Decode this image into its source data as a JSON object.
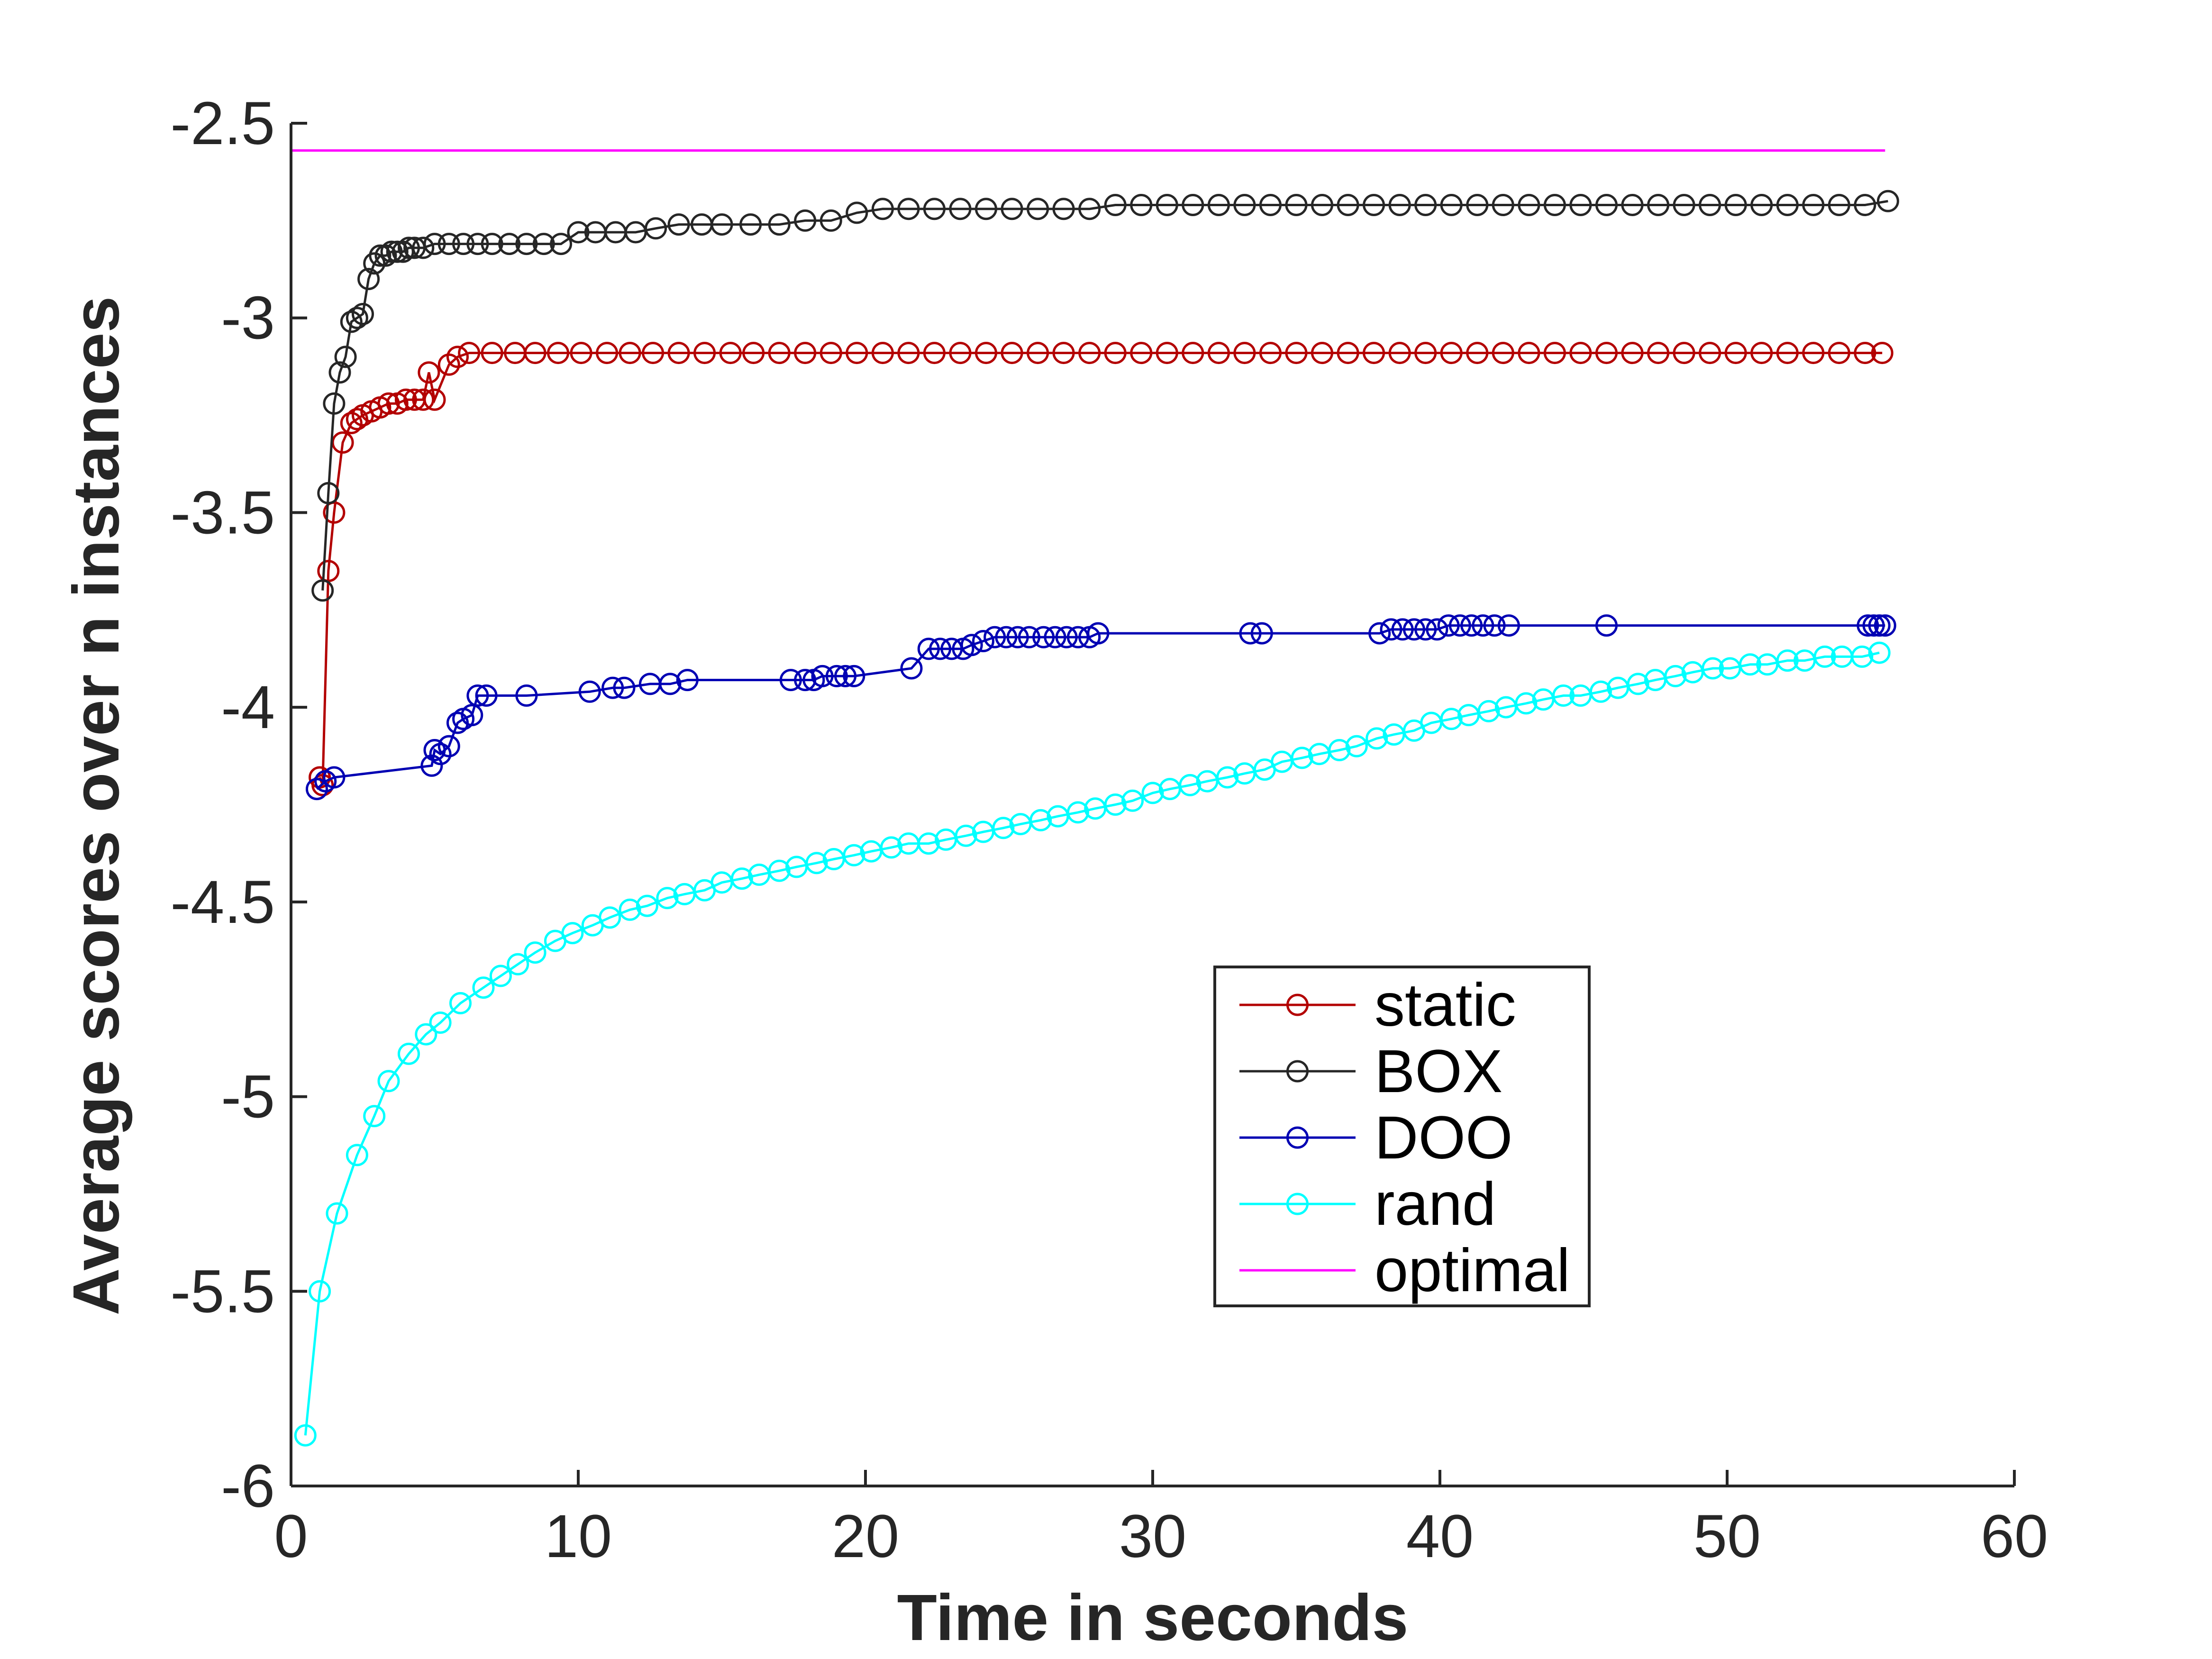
{
  "chart_data": {
    "type": "line",
    "title": "",
    "xlabel": "Time in seconds",
    "ylabel": "Average scores over n instances",
    "xlim": [
      0,
      60
    ],
    "ylim": [
      -6,
      -2.5
    ],
    "xticks": [
      0,
      10,
      20,
      30,
      40,
      50,
      60
    ],
    "yticks": [
      -2.5,
      -3,
      -3.5,
      -4,
      -4.5,
      -5,
      -5.5,
      -6
    ],
    "xtick_labels": [
      "0",
      "10",
      "20",
      "30",
      "40",
      "50",
      "60"
    ],
    "ytick_labels": [
      "-2.5",
      "-3",
      "-3.5",
      "-4",
      "-4.5",
      "-5",
      "-5.5",
      "-6"
    ],
    "grid": false,
    "legend_position": "lower-right",
    "series": [
      {
        "name": "static",
        "color": "#b30000",
        "marker": "circle",
        "x": [
          1.0,
          1.1,
          1.3,
          1.5,
          1.8,
          2.1,
          2.3,
          2.5,
          2.8,
          3.1,
          3.4,
          3.7,
          4.0,
          4.3,
          4.6,
          4.8,
          5.0,
          5.5,
          5.8,
          6.2,
          7.0,
          7.8,
          8.5,
          9.3,
          10.1,
          11.0,
          11.8,
          12.6,
          13.5,
          14.4,
          15.3,
          16.1,
          17.0,
          17.9,
          18.8,
          19.7,
          20.6,
          21.5,
          22.4,
          23.3,
          24.2,
          25.1,
          26.0,
          26.9,
          27.8,
          28.7,
          29.6,
          30.5,
          31.4,
          32.3,
          33.2,
          34.1,
          35.0,
          35.9,
          36.8,
          37.7,
          38.6,
          39.5,
          40.4,
          41.3,
          42.2,
          43.1,
          44.0,
          44.9,
          45.8,
          46.7,
          47.6,
          48.5,
          49.4,
          50.3,
          51.2,
          52.1,
          53.0,
          53.9,
          54.8,
          55.4
        ],
        "y": [
          -4.18,
          -4.2,
          -3.65,
          -3.5,
          -3.32,
          -3.27,
          -3.26,
          -3.25,
          -3.24,
          -3.23,
          -3.22,
          -3.22,
          -3.21,
          -3.21,
          -3.21,
          -3.14,
          -3.21,
          -3.12,
          -3.1,
          -3.09,
          -3.09,
          -3.09,
          -3.09,
          -3.09,
          -3.09,
          -3.09,
          -3.09,
          -3.09,
          -3.09,
          -3.09,
          -3.09,
          -3.09,
          -3.09,
          -3.09,
          -3.09,
          -3.09,
          -3.09,
          -3.09,
          -3.09,
          -3.09,
          -3.09,
          -3.09,
          -3.09,
          -3.09,
          -3.09,
          -3.09,
          -3.09,
          -3.09,
          -3.09,
          -3.09,
          -3.09,
          -3.09,
          -3.09,
          -3.09,
          -3.09,
          -3.09,
          -3.09,
          -3.09,
          -3.09,
          -3.09,
          -3.09,
          -3.09,
          -3.09,
          -3.09,
          -3.09,
          -3.09,
          -3.09,
          -3.09,
          -3.09,
          -3.09,
          -3.09,
          -3.09,
          -3.09,
          -3.09,
          -3.09,
          -3.09
        ]
      },
      {
        "name": "BOX",
        "color": "#262626",
        "marker": "circle",
        "x": [
          1.1,
          1.3,
          1.5,
          1.7,
          1.9,
          2.1,
          2.3,
          2.5,
          2.7,
          2.9,
          3.1,
          3.3,
          3.5,
          3.7,
          3.9,
          4.1,
          4.3,
          4.6,
          5.0,
          5.5,
          6.0,
          6.5,
          7.0,
          7.6,
          8.2,
          8.8,
          9.4,
          10.0,
          10.6,
          11.3,
          12.0,
          12.7,
          13.5,
          14.3,
          15.0,
          16.0,
          17.0,
          17.9,
          18.8,
          19.7,
          20.6,
          21.5,
          22.4,
          23.3,
          24.2,
          25.1,
          26.0,
          26.9,
          27.8,
          28.7,
          29.6,
          30.5,
          31.4,
          32.3,
          33.2,
          34.1,
          35.0,
          35.9,
          36.8,
          37.7,
          38.6,
          39.5,
          40.4,
          41.3,
          42.2,
          43.1,
          44.0,
          44.9,
          45.8,
          46.7,
          47.6,
          48.5,
          49.4,
          50.3,
          51.2,
          52.1,
          53.0,
          53.9,
          54.8,
          55.6
        ],
        "y": [
          -3.7,
          -3.45,
          -3.22,
          -3.14,
          -3.1,
          -3.01,
          -3.0,
          -2.99,
          -2.9,
          -2.86,
          -2.84,
          -2.84,
          -2.83,
          -2.83,
          -2.83,
          -2.82,
          -2.82,
          -2.82,
          -2.81,
          -2.81,
          -2.81,
          -2.81,
          -2.81,
          -2.81,
          -2.81,
          -2.81,
          -2.81,
          -2.78,
          -2.78,
          -2.78,
          -2.78,
          -2.77,
          -2.76,
          -2.76,
          -2.76,
          -2.76,
          -2.76,
          -2.75,
          -2.75,
          -2.73,
          -2.72,
          -2.72,
          -2.72,
          -2.72,
          -2.72,
          -2.72,
          -2.72,
          -2.72,
          -2.72,
          -2.71,
          -2.71,
          -2.71,
          -2.71,
          -2.71,
          -2.71,
          -2.71,
          -2.71,
          -2.71,
          -2.71,
          -2.71,
          -2.71,
          -2.71,
          -2.71,
          -2.71,
          -2.71,
          -2.71,
          -2.71,
          -2.71,
          -2.71,
          -2.71,
          -2.71,
          -2.71,
          -2.71,
          -2.71,
          -2.71,
          -2.71,
          -2.71,
          -2.71,
          -2.71,
          -2.7
        ]
      },
      {
        "name": "DOO",
        "color": "#0000b3",
        "marker": "circle",
        "x": [
          0.9,
          1.2,
          1.5,
          4.9,
          5.0,
          5.2,
          5.5,
          5.8,
          6.0,
          6.3,
          6.5,
          6.8,
          8.2,
          10.4,
          11.2,
          11.6,
          12.5,
          13.2,
          13.8,
          17.4,
          17.9,
          18.2,
          18.5,
          19.0,
          19.3,
          19.6,
          21.6,
          22.2,
          22.6,
          23.0,
          23.4,
          23.7,
          24.1,
          24.5,
          24.9,
          25.3,
          25.7,
          26.2,
          26.6,
          27.0,
          27.4,
          27.8,
          28.1,
          33.4,
          33.8,
          37.9,
          38.3,
          38.7,
          39.1,
          39.5,
          39.9,
          40.3,
          40.7,
          41.1,
          41.5,
          41.9,
          42.4,
          45.8,
          54.9,
          55.1,
          55.3,
          55.5
        ],
        "y": [
          -4.21,
          -4.19,
          -4.18,
          -4.15,
          -4.11,
          -4.12,
          -4.1,
          -4.04,
          -4.03,
          -4.02,
          -3.97,
          -3.97,
          -3.97,
          -3.96,
          -3.95,
          -3.95,
          -3.94,
          -3.94,
          -3.93,
          -3.93,
          -3.93,
          -3.93,
          -3.92,
          -3.92,
          -3.92,
          -3.92,
          -3.9,
          -3.85,
          -3.85,
          -3.85,
          -3.85,
          -3.84,
          -3.83,
          -3.82,
          -3.82,
          -3.82,
          -3.82,
          -3.82,
          -3.82,
          -3.82,
          -3.82,
          -3.82,
          -3.81,
          -3.81,
          -3.81,
          -3.81,
          -3.8,
          -3.8,
          -3.8,
          -3.8,
          -3.8,
          -3.79,
          -3.79,
          -3.79,
          -3.79,
          -3.79,
          -3.79,
          -3.79,
          -3.79,
          -3.79,
          -3.79,
          -3.79
        ]
      },
      {
        "name": "rand",
        "color": "#00ffff",
        "marker": "circle",
        "x": [
          0.5,
          1.0,
          1.6,
          2.3,
          2.9,
          3.4,
          4.1,
          4.7,
          5.2,
          5.9,
          6.7,
          7.3,
          7.9,
          8.5,
          9.2,
          9.8,
          10.5,
          11.1,
          11.8,
          12.4,
          13.1,
          13.7,
          14.4,
          15.0,
          15.7,
          16.3,
          17.0,
          17.6,
          18.3,
          18.9,
          19.6,
          20.2,
          20.9,
          21.5,
          22.2,
          22.8,
          23.5,
          24.1,
          24.8,
          25.4,
          26.1,
          26.7,
          27.4,
          28.0,
          28.7,
          29.3,
          30.0,
          30.6,
          31.3,
          31.9,
          32.6,
          33.2,
          33.9,
          34.5,
          35.2,
          35.8,
          36.5,
          37.1,
          37.8,
          38.4,
          39.1,
          39.7,
          40.4,
          41.0,
          41.7,
          42.3,
          43.0,
          43.6,
          44.3,
          44.9,
          45.6,
          46.2,
          46.9,
          47.5,
          48.2,
          48.8,
          49.5,
          50.1,
          50.8,
          51.4,
          52.1,
          52.7,
          53.4,
          54.0,
          54.7,
          55.3
        ],
        "y": [
          -5.87,
          -5.5,
          -5.3,
          -5.15,
          -5.05,
          -4.96,
          -4.89,
          -4.84,
          -4.81,
          -4.76,
          -4.72,
          -4.69,
          -4.66,
          -4.63,
          -4.6,
          -4.58,
          -4.56,
          -4.54,
          -4.52,
          -4.51,
          -4.49,
          -4.48,
          -4.47,
          -4.45,
          -4.44,
          -4.43,
          -4.42,
          -4.41,
          -4.4,
          -4.39,
          -4.38,
          -4.37,
          -4.36,
          -4.35,
          -4.35,
          -4.34,
          -4.33,
          -4.32,
          -4.31,
          -4.3,
          -4.29,
          -4.28,
          -4.27,
          -4.26,
          -4.25,
          -4.24,
          -4.22,
          -4.21,
          -4.2,
          -4.19,
          -4.18,
          -4.17,
          -4.16,
          -4.14,
          -4.13,
          -4.12,
          -4.11,
          -4.1,
          -4.08,
          -4.07,
          -4.06,
          -4.04,
          -4.03,
          -4.02,
          -4.01,
          -4.0,
          -3.99,
          -3.98,
          -3.97,
          -3.97,
          -3.96,
          -3.95,
          -3.94,
          -3.93,
          -3.92,
          -3.91,
          -3.9,
          -3.9,
          -3.89,
          -3.89,
          -3.88,
          -3.88,
          -3.87,
          -3.87,
          -3.87,
          -3.86
        ]
      },
      {
        "name": "optimal",
        "color": "#ff00ff",
        "marker": "none",
        "x": [
          0,
          55.5
        ],
        "y": [
          -2.57,
          -2.57
        ]
      }
    ]
  }
}
